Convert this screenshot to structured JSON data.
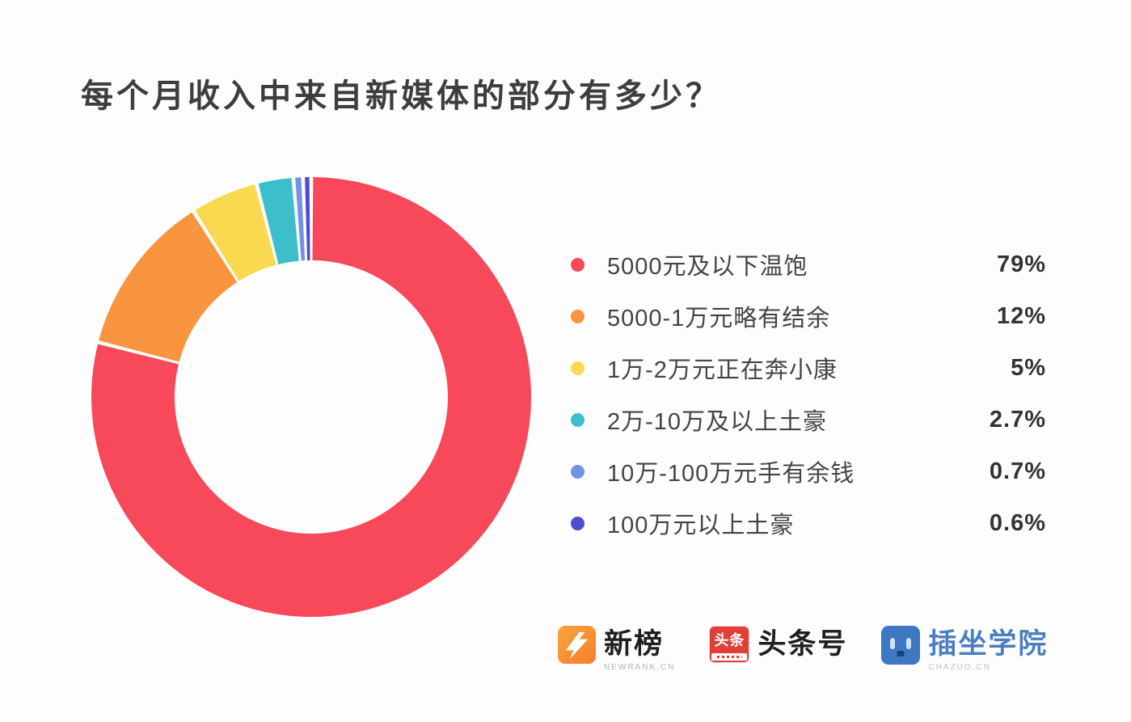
{
  "title": "每个月收入中来自新媒体的部分有多少？",
  "chart_data": {
    "type": "pie",
    "subtype": "donut",
    "title": "每个月收入中来自新媒体的部分有多少？",
    "legend_position": "right",
    "direction": "clockwise",
    "start_angle_deg": 0,
    "inner_radius_ratio": 0.62,
    "categories": [
      "5000元及以下温饱",
      "5000-1万元略有结余",
      "1万-2万元正在奔小康",
      "2万-10万及以上土豪",
      "10万-100万元手有余钱",
      "100万元以上土豪"
    ],
    "values": [
      79,
      12,
      5,
      2.7,
      0.7,
      0.6
    ],
    "display_values": [
      "79%",
      "12%",
      "5%",
      "2.7%",
      "0.7%",
      "0.6%"
    ],
    "colors": [
      "#f8495a",
      "#f9953f",
      "#f8d94f",
      "#3dbecb",
      "#7292e4",
      "#514bd0"
    ]
  },
  "footer": {
    "logos": [
      {
        "name": "新榜",
        "sub": "NEWRANK.CN",
        "icon": "newrank-lightning-n"
      },
      {
        "name": "头条号",
        "icon_text": "头条",
        "icon": "toutiao-red-square"
      },
      {
        "name": "插坐学院",
        "sub": "CHAZUO.CN",
        "icon": "chazuo-robot-face"
      }
    ]
  },
  "colors": {
    "background": "#fdfdfd",
    "title_text": "#3d3d3d",
    "legend_label": "#444444",
    "legend_value": "#333333",
    "newrank_orange": "#f5802c",
    "toutiao_red": "#e03e36",
    "chazuo_blue": "#3e77c2"
  }
}
